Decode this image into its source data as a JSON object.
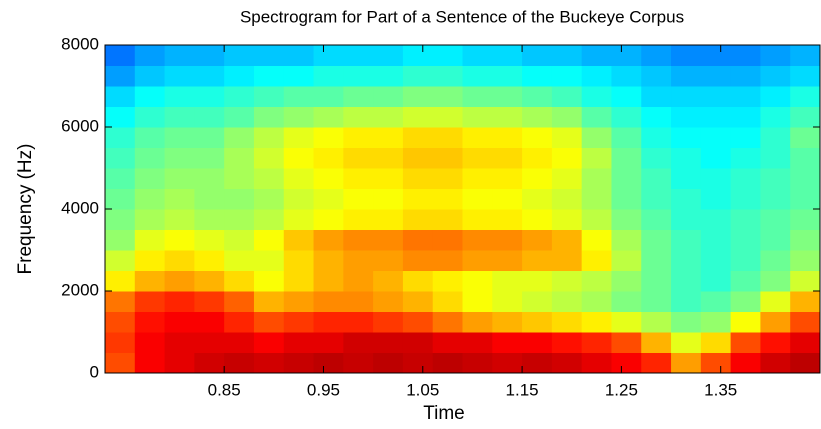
{
  "chart_data": {
    "type": "heatmap",
    "title": "Spectrogram for Part of a Sentence of the Buckeye Corpus",
    "x_label": "Time",
    "y_label": "Frequency (Hz)",
    "colormap": "jet",
    "clim": [
      0,
      100
    ],
    "x": [
      0.745,
      0.775,
      0.805,
      0.835,
      0.865,
      0.895,
      0.925,
      0.955,
      0.985,
      1.015,
      1.045,
      1.075,
      1.105,
      1.135,
      1.165,
      1.195,
      1.225,
      1.255,
      1.285,
      1.315,
      1.345,
      1.375,
      1.405,
      1.435
    ],
    "y": [
      250,
      750,
      1250,
      1750,
      2250,
      2750,
      3250,
      3750,
      4250,
      4750,
      5250,
      5750,
      6250,
      6750,
      7250,
      7750
    ],
    "z": [
      [
        80,
        88,
        90,
        92,
        93,
        92,
        93,
        94,
        93,
        94,
        93,
        94,
        93,
        92,
        93,
        92,
        90,
        88,
        84,
        72,
        80,
        88,
        92,
        94
      ],
      [
        82,
        88,
        90,
        90,
        90,
        88,
        90,
        90,
        92,
        92,
        92,
        90,
        90,
        88,
        88,
        86,
        84,
        80,
        70,
        60,
        66,
        80,
        86,
        90
      ],
      [
        80,
        86,
        88,
        88,
        84,
        80,
        82,
        84,
        84,
        82,
        80,
        76,
        72,
        70,
        68,
        66,
        64,
        60,
        55,
        50,
        52,
        62,
        72,
        80
      ],
      [
        76,
        82,
        84,
        82,
        78,
        70,
        72,
        74,
        74,
        72,
        70,
        66,
        62,
        60,
        58,
        56,
        54,
        50,
        48,
        44,
        46,
        50,
        60,
        70
      ],
      [
        64,
        70,
        72,
        70,
        66,
        62,
        66,
        70,
        72,
        70,
        66,
        64,
        62,
        60,
        60,
        58,
        56,
        52,
        48,
        44,
        42,
        46,
        50,
        58
      ],
      [
        58,
        64,
        66,
        64,
        60,
        60,
        66,
        70,
        72,
        72,
        74,
        74,
        72,
        72,
        70,
        70,
        64,
        56,
        48,
        44,
        42,
        44,
        48,
        52
      ],
      [
        52,
        60,
        62,
        60,
        58,
        62,
        68,
        72,
        74,
        74,
        76,
        76,
        74,
        74,
        72,
        70,
        62,
        54,
        48,
        44,
        42,
        44,
        46,
        50
      ],
      [
        50,
        54,
        56,
        54,
        54,
        56,
        60,
        62,
        64,
        64,
        66,
        66,
        64,
        64,
        62,
        60,
        56,
        50,
        46,
        42,
        42,
        44,
        46,
        48
      ],
      [
        48,
        52,
        54,
        52,
        52,
        54,
        58,
        60,
        62,
        62,
        64,
        64,
        62,
        62,
        60,
        58,
        54,
        48,
        44,
        42,
        40,
        42,
        44,
        46
      ],
      [
        46,
        50,
        52,
        52,
        54,
        56,
        60,
        62,
        64,
        64,
        66,
        66,
        64,
        64,
        62,
        60,
        54,
        48,
        44,
        40,
        40,
        42,
        44,
        46
      ],
      [
        44,
        48,
        50,
        50,
        54,
        58,
        62,
        64,
        66,
        66,
        68,
        68,
        66,
        66,
        64,
        62,
        56,
        48,
        42,
        40,
        38,
        40,
        42,
        46
      ],
      [
        42,
        46,
        48,
        48,
        52,
        56,
        60,
        62,
        64,
        64,
        66,
        66,
        64,
        64,
        62,
        60,
        52,
        46,
        40,
        38,
        38,
        38,
        42,
        48
      ],
      [
        38,
        42,
        44,
        44,
        46,
        50,
        52,
        54,
        56,
        56,
        58,
        58,
        56,
        56,
        54,
        52,
        46,
        42,
        38,
        36,
        36,
        36,
        40,
        44
      ],
      [
        34,
        38,
        40,
        40,
        42,
        44,
        46,
        46,
        48,
        48,
        50,
        50,
        48,
        48,
        46,
        44,
        40,
        38,
        34,
        34,
        34,
        34,
        36,
        40
      ],
      [
        28,
        32,
        34,
        34,
        36,
        38,
        38,
        40,
        40,
        40,
        42,
        42,
        40,
        40,
        38,
        38,
        36,
        34,
        32,
        30,
        30,
        30,
        32,
        34
      ],
      [
        24,
        28,
        30,
        30,
        32,
        32,
        32,
        34,
        34,
        34,
        36,
        36,
        34,
        34,
        32,
        32,
        30,
        30,
        28,
        26,
        26,
        26,
        28,
        30
      ]
    ],
    "xlim": [
      0.73,
      1.45
    ],
    "ylim": [
      0,
      8000
    ],
    "xticks": [
      0.85,
      0.95,
      1.05,
      1.15,
      1.25,
      1.35
    ],
    "yticks": [
      0,
      2000,
      4000,
      6000,
      8000
    ]
  }
}
